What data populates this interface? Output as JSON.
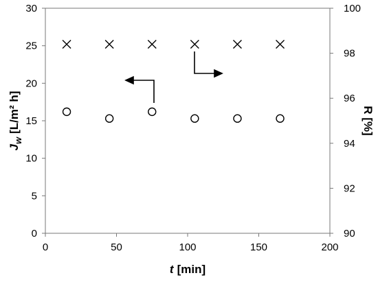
{
  "chart_data": {
    "type": "scatter",
    "x": [
      15,
      45,
      75,
      105,
      135,
      165
    ],
    "series": [
      {
        "marker": "circle",
        "color": "#000000",
        "values": [
          16.2,
          15.3,
          16.2,
          15.3,
          15.3,
          15.3
        ]
      },
      {
        "marker": "x",
        "color": "#000000",
        "axis": "y2",
        "values": [
          98.4,
          98.4,
          98.4,
          98.4,
          98.4,
          98.4
        ]
      }
    ],
    "xlim": [
      0,
      200
    ],
    "xticks": [
      0,
      50,
      100,
      150,
      200
    ],
    "ylim": [
      0,
      30
    ],
    "yticks": [
      0,
      5,
      10,
      15,
      20,
      25,
      30
    ],
    "y2lim": [
      90,
      100
    ],
    "y2ticks": [
      90,
      92,
      94,
      96,
      98,
      100
    ],
    "xlabel": {
      "symbol": "t",
      "unit": "[min]"
    },
    "ylabel": {
      "symbol": "J",
      "subscript": "w",
      "unit": "[L/m² h]"
    },
    "y2label": "R [%]"
  }
}
